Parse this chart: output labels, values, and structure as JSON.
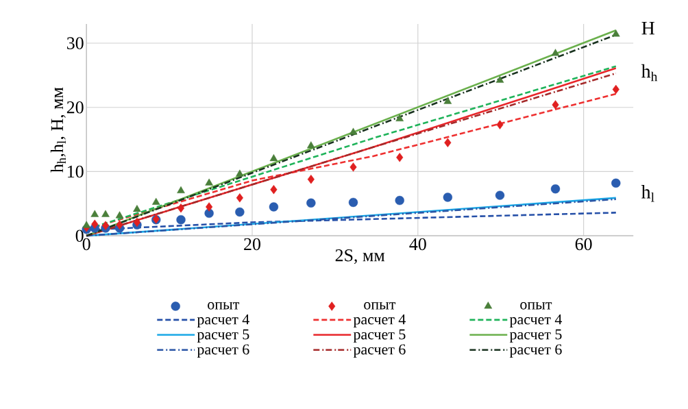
{
  "chart_data": {
    "type": "scatter",
    "xlabel": "2S, мм",
    "ylabel": "h$_{h}$,h$_{l}$, H, мм",
    "xlim": [
      0,
      66
    ],
    "ylim": [
      0,
      33
    ],
    "xticks": [
      0,
      20,
      40,
      60
    ],
    "yticks": [
      0,
      10,
      20,
      30
    ],
    "grid": true,
    "legend": "bottom",
    "annotations": [
      "H",
      "h$_{h}$",
      "h$_{l}$"
    ],
    "series": [
      {
        "name": "опыт",
        "type": "scatter",
        "marker": "circle",
        "color": "#2a5db0",
        "x": [
          0,
          1,
          2.3,
          4,
          6.1,
          8.4,
          11.4,
          14.8,
          18.5,
          22.6,
          27.1,
          32.2,
          37.8,
          43.6,
          49.9,
          56.6,
          63.9
        ],
        "values": [
          1.0,
          1.2,
          1.2,
          1.2,
          1.7,
          2.5,
          2.5,
          3.5,
          3.7,
          4.5,
          5.1,
          5.2,
          5.5,
          6.0,
          6.3,
          7.3,
          8.2
        ]
      },
      {
        "name": "опыт",
        "type": "scatter",
        "marker": "diamond",
        "color": "#e02020",
        "x": [
          0,
          1,
          2.3,
          4,
          6.1,
          8.4,
          11.4,
          14.8,
          18.5,
          22.6,
          27.1,
          32.2,
          37.8,
          43.6,
          49.9,
          56.6,
          63.9
        ],
        "values": [
          1.3,
          1.8,
          1.6,
          1.7,
          2.1,
          2.6,
          4.3,
          4.5,
          5.9,
          7.2,
          8.8,
          10.7,
          12.2,
          14.5,
          17.3,
          20.4,
          22.8
        ]
      },
      {
        "name": "опыт",
        "type": "scatter",
        "marker": "triangle",
        "color": "#4a7f3a",
        "x": [
          0,
          1,
          2.3,
          4,
          6.1,
          8.4,
          11.4,
          14.8,
          18.5,
          22.6,
          27.1,
          32.2,
          37.8,
          43.6,
          49.9,
          56.6,
          63.9
        ],
        "values": [
          1.6,
          3.3,
          3.3,
          3.1,
          4.1,
          5.2,
          7.0,
          8.2,
          9.6,
          12.0,
          14.0,
          16.1,
          18.2,
          20.9,
          24.2,
          28.4,
          31.4
        ]
      },
      {
        "name": "расчет 4",
        "type": "line",
        "line_style": "dashed",
        "color": "#2650a8",
        "x": [
          0,
          20,
          63.9
        ],
        "values": [
          0.9,
          2.1,
          3.6
        ]
      },
      {
        "name": "расчет 4",
        "type": "line",
        "line_style": "dashed",
        "color": "#ee3030",
        "x": [
          0,
          20,
          34.6,
          63.9
        ],
        "values": [
          1.0,
          8.6,
          12.4,
          22.1
        ]
      },
      {
        "name": "расчет 4",
        "type": "line",
        "line_style": "dashed",
        "color": "#1fb35a",
        "x": [
          0,
          20,
          34.6,
          63.9
        ],
        "values": [
          1.0,
          9.2,
          15.2,
          26.4
        ]
      },
      {
        "name": "расчет 5",
        "type": "line",
        "line_style": "solid",
        "color": "#1aa7e6",
        "x": [
          0,
          63.9
        ],
        "values": [
          0,
          5.9
        ]
      },
      {
        "name": "расчет 5",
        "type": "line",
        "line_style": "solid",
        "color": "#e8262a",
        "x": [
          0,
          34.6,
          63.9
        ],
        "values": [
          0,
          13.8,
          26.1
        ]
      },
      {
        "name": "расчет 5",
        "type": "line",
        "line_style": "solid",
        "color": "#6ab04c",
        "x": [
          0,
          63.9
        ],
        "values": [
          0,
          32.0
        ]
      },
      {
        "name": "расчет 6",
        "type": "line",
        "line_style": "dashdot",
        "color": "#2a55a5",
        "x": [
          0,
          63.9
        ],
        "values": [
          0,
          5.7
        ]
      },
      {
        "name": "расчет 6",
        "type": "line",
        "line_style": "dashdot",
        "color": "#a52a2a",
        "x": [
          0,
          34.6,
          63.9
        ],
        "values": [
          0,
          13.8,
          25.3
        ]
      },
      {
        "name": "расчет 6",
        "type": "line",
        "line_style": "dashdot",
        "color": "#1a3320",
        "x": [
          0,
          63.9
        ],
        "values": [
          0,
          31.3
        ]
      }
    ]
  }
}
